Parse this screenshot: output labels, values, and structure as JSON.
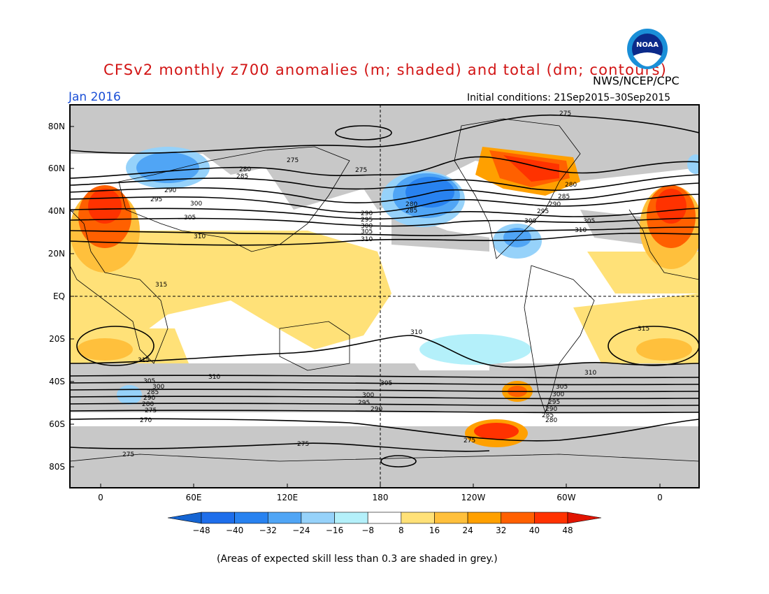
{
  "header": {
    "title": "CFSv2 monthly z700 anomalies (m; shaded) and total (dm; contours)",
    "agency": "NWS/NCEP/CPC",
    "month": "Jan 2016",
    "initial_conditions": "Initial conditions: 21Sep2015–30Sep2015",
    "logo_text": "NOAA"
  },
  "map": {
    "lon_labels": [
      "0",
      "60E",
      "120E",
      "180",
      "120W",
      "60W",
      "0"
    ],
    "lat_labels": [
      "80N",
      "60N",
      "40N",
      "20N",
      "EQ",
      "20S",
      "40S",
      "60S",
      "80S"
    ],
    "contour_labels": [
      "275",
      "280",
      "285",
      "290",
      "295",
      "300",
      "305",
      "310",
      "315",
      "270"
    ]
  },
  "colorbar": {
    "ticks": [
      "-48",
      "-40",
      "-32",
      "-24",
      "-16",
      "-8",
      "8",
      "16",
      "24",
      "32",
      "40",
      "48"
    ],
    "colors": [
      "#1464d2",
      "#1e6eeb",
      "#2882f0",
      "#50a5f5",
      "#96d2fa",
      "#b4f0fa",
      "#ffffff",
      "#ffe178",
      "#ffc03c",
      "#ffa000",
      "#ff6000",
      "#ff3200",
      "#e11400"
    ]
  },
  "footnote": "(Areas of expected skill less than 0.3 are shaded in grey.)"
}
